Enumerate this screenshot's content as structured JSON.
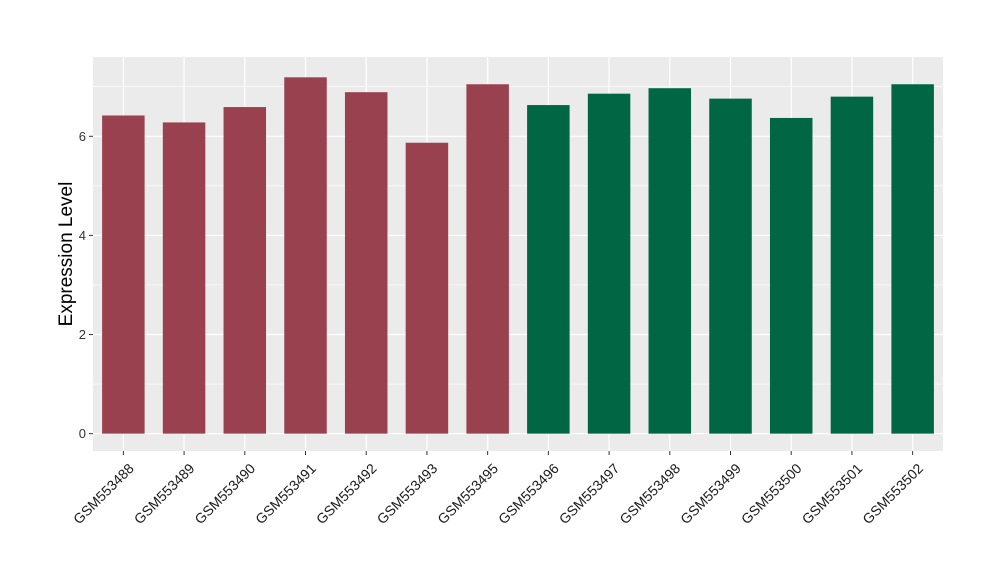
{
  "chart_data": {
    "type": "bar",
    "title": "",
    "xlabel": "",
    "ylabel": "Expression Level",
    "ylim": [
      -0.35,
      7.6
    ],
    "yticks": [
      0,
      2,
      4,
      6
    ],
    "grid": true,
    "categories": [
      "GSM553488",
      "GSM553489",
      "GSM553490",
      "GSM553491",
      "GSM553492",
      "GSM553493",
      "GSM553495",
      "GSM553496",
      "GSM553497",
      "GSM553498",
      "GSM553499",
      "GSM553500",
      "GSM553501",
      "GSM553502"
    ],
    "values": [
      6.42,
      6.28,
      6.59,
      7.19,
      6.89,
      5.87,
      7.05,
      6.63,
      6.86,
      6.97,
      6.76,
      6.37,
      6.8,
      7.05
    ],
    "groups": [
      "a",
      "a",
      "a",
      "a",
      "a",
      "a",
      "a",
      "b",
      "b",
      "b",
      "b",
      "b",
      "b",
      "b"
    ],
    "group_colors": {
      "a": "#99414f",
      "b": "#006644"
    },
    "panel_color": "#ebebeb",
    "grid_color": "#ffffff"
  }
}
